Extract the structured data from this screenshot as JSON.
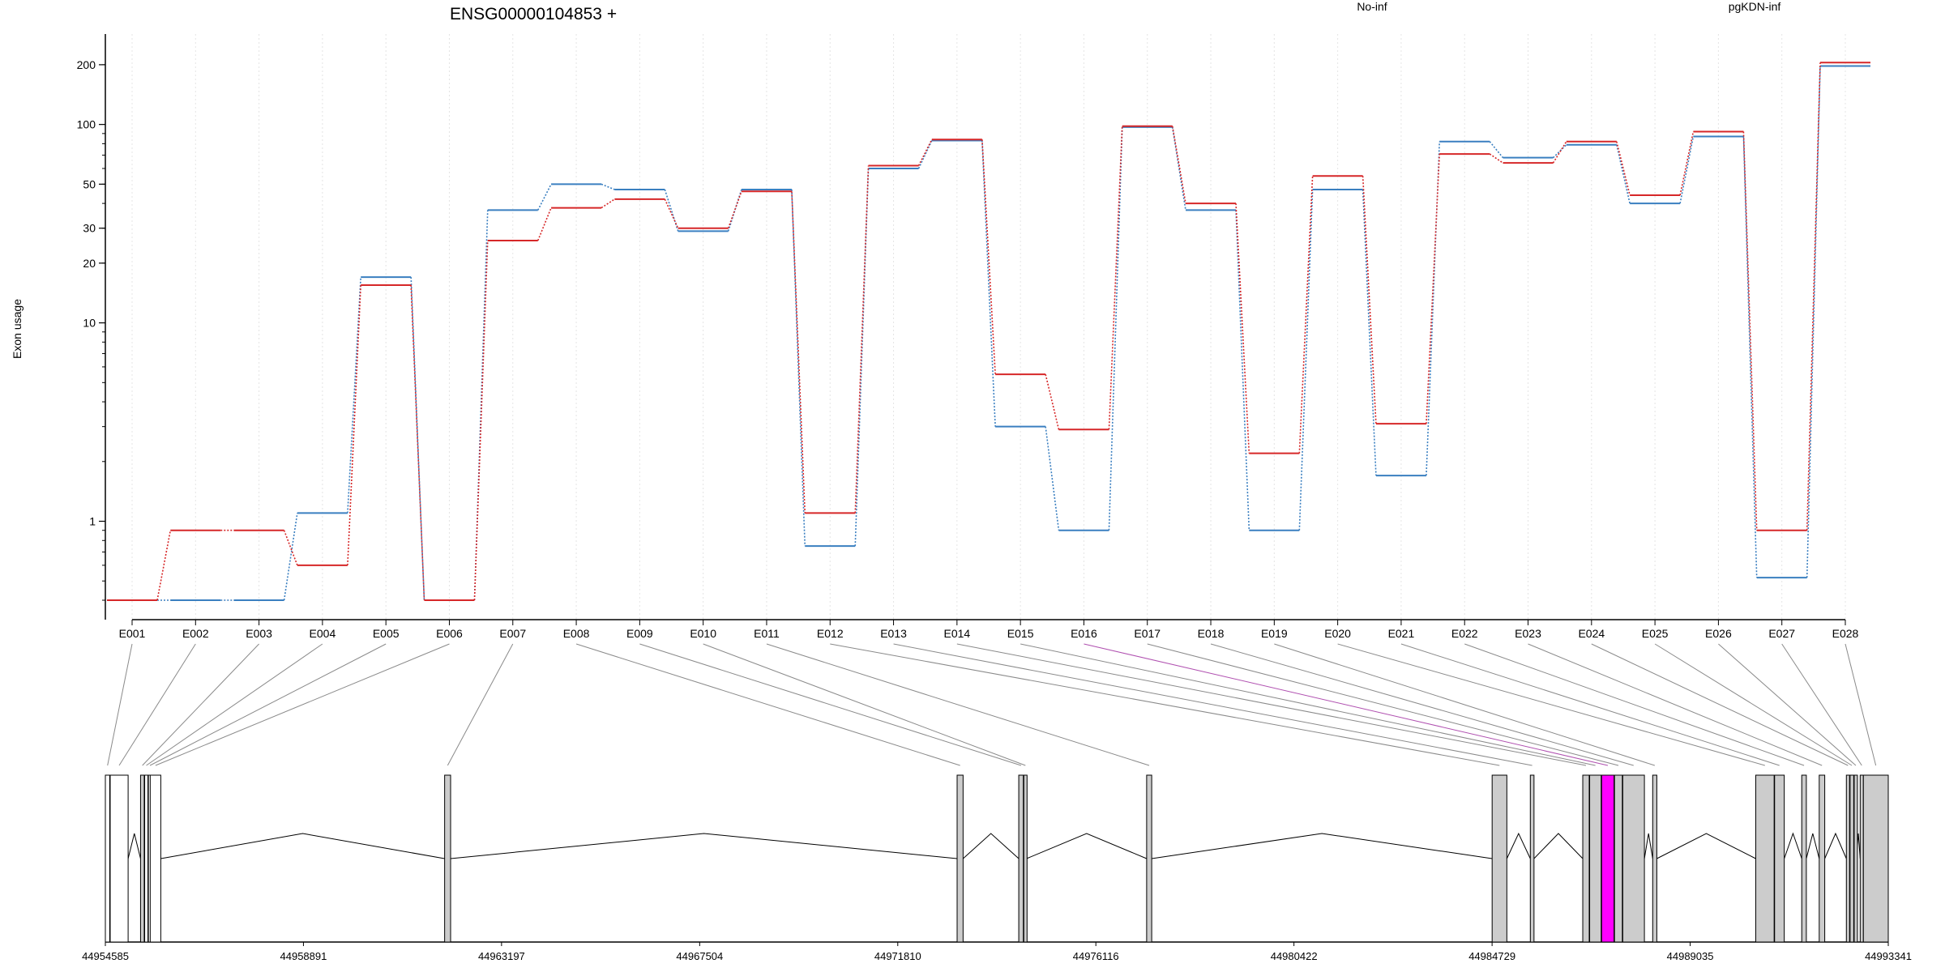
{
  "chart_data": {
    "type": "line",
    "title": "ENSG00000104853 +",
    "ylabel": "Exon usage",
    "xlabel": "",
    "y_scale": "log",
    "ylim": [
      0.4,
      260
    ],
    "yticks": [
      1,
      10,
      20,
      30,
      50,
      100,
      200
    ],
    "grid": "vertical dotted lines at each exon",
    "legend_placement": "top",
    "categories": [
      "E001",
      "E002",
      "E003",
      "E004",
      "E005",
      "E006",
      "E007",
      "E008",
      "E009",
      "E010",
      "E011",
      "E012",
      "E013",
      "E014",
      "E015",
      "E016",
      "E017",
      "E018",
      "E019",
      "E020",
      "E021",
      "E022",
      "E023",
      "E024",
      "E025",
      "E026",
      "E027",
      "E028"
    ],
    "series": [
      {
        "name": "No-inf",
        "color": "#d62728",
        "values": [
          0.4,
          0.9,
          0.9,
          0.6,
          15.5,
          0.4,
          26,
          38,
          42,
          30,
          46,
          1.1,
          62,
          84,
          5.5,
          2.9,
          98,
          40,
          2.2,
          55,
          3.1,
          71,
          64,
          82,
          44,
          92,
          0.9,
          205
        ]
      },
      {
        "name": "pgKDN-inf",
        "color": "#3a7fc0",
        "values": [
          0.4,
          0.4,
          0.4,
          1.1,
          17,
          0.4,
          37,
          50,
          47,
          29,
          47,
          0.75,
          60,
          83,
          3.0,
          0.9,
          97,
          37,
          0.9,
          47,
          1.7,
          82,
          68,
          79,
          40,
          87,
          0.52,
          197
        ]
      }
    ],
    "gene_model": {
      "coordinate_ticks": [
        "44954585",
        "44958891",
        "44963197",
        "44967504",
        "44971810",
        "44976116",
        "44980422",
        "44984729",
        "44989035",
        "44993341"
      ],
      "range": [
        44954585,
        44993341
      ],
      "highlighted_exon": "E016",
      "highlight_color": "#ff00ff",
      "exon_fill": "#cccccc",
      "exons": [
        {
          "id": "E001",
          "start": 44954585,
          "end": 44954680,
          "fill": "#ffffff"
        },
        {
          "id": "E002",
          "start": 44954690,
          "end": 44955080,
          "fill": "#ffffff"
        },
        {
          "id": "E003",
          "start": 44955350,
          "end": 44955430,
          "fill": "#cccccc"
        },
        {
          "id": "E004",
          "start": 44955440,
          "end": 44955510,
          "fill": "#ffffff"
        },
        {
          "id": "E005",
          "start": 44955520,
          "end": 44955530,
          "fill": "#ffffff"
        },
        {
          "id": "E006",
          "start": 44955560,
          "end": 44955790,
          "fill": "#ffffff"
        },
        {
          "id": "E007",
          "start": 44961960,
          "end": 44962090,
          "fill": "#cccccc"
        },
        {
          "id": "E008",
          "start": 44973100,
          "end": 44973230,
          "fill": "#cccccc"
        },
        {
          "id": "E009",
          "start": 44974440,
          "end": 44974540,
          "fill": "#cccccc"
        },
        {
          "id": "E010",
          "start": 44974550,
          "end": 44974610,
          "fill": "#cccccc"
        },
        {
          "id": "E011",
          "start": 44977220,
          "end": 44977330,
          "fill": "#cccccc"
        },
        {
          "id": "E012",
          "start": 44984730,
          "end": 44985050,
          "fill": "#cccccc"
        },
        {
          "id": "E013",
          "start": 44985560,
          "end": 44985640,
          "fill": "#cccccc"
        },
        {
          "id": "E014",
          "start": 44986700,
          "end": 44986840,
          "fill": "#cccccc"
        },
        {
          "id": "E015",
          "start": 44986850,
          "end": 44987100,
          "fill": "#cccccc"
        },
        {
          "id": "E016",
          "start": 44987110,
          "end": 44987380,
          "fill": "#ff00ff"
        },
        {
          "id": "E017",
          "start": 44987390,
          "end": 44987560,
          "fill": "#cccccc"
        },
        {
          "id": "E018",
          "start": 44987570,
          "end": 44988040,
          "fill": "#cccccc"
        },
        {
          "id": "E019",
          "start": 44988220,
          "end": 44988310,
          "fill": "#cccccc"
        },
        {
          "id": "E020",
          "start": 44990460,
          "end": 44990860,
          "fill": "#cccccc"
        },
        {
          "id": "E021",
          "start": 44990870,
          "end": 44991080,
          "fill": "#cccccc"
        },
        {
          "id": "E022",
          "start": 44991460,
          "end": 44991560,
          "fill": "#cccccc"
        },
        {
          "id": "E023",
          "start": 44991840,
          "end": 44991960,
          "fill": "#cccccc"
        },
        {
          "id": "E024",
          "start": 44992430,
          "end": 44992500,
          "fill": "#cccccc"
        },
        {
          "id": "E025",
          "start": 44992510,
          "end": 44992590,
          "fill": "#cccccc"
        },
        {
          "id": "E026",
          "start": 44992600,
          "end": 44992650,
          "fill": "#cccccc"
        },
        {
          "id": "E027",
          "start": 44992730,
          "end": 44992780,
          "fill": "#cccccc"
        },
        {
          "id": "E028",
          "start": 44992800,
          "end": 44993341,
          "fill": "#cccccc"
        }
      ]
    }
  }
}
